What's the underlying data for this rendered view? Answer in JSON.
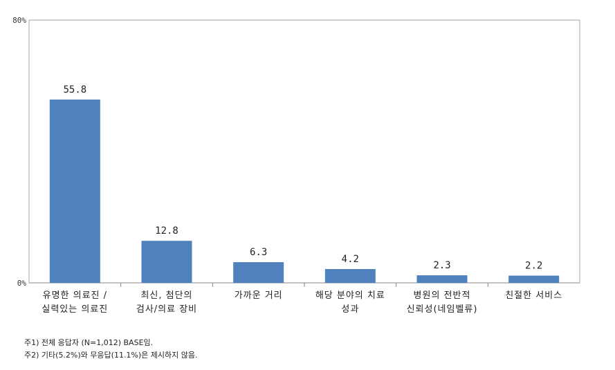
{
  "chart_data": {
    "type": "bar",
    "categories": [
      [
        "유명한 의료진 /",
        "실력있는 의료진"
      ],
      [
        "최신, 첨단의",
        "검사/의료 장비"
      ],
      [
        "가까운 거리"
      ],
      [
        "해당 분야의 치료",
        "성과"
      ],
      [
        "병원의 전반적",
        "신뢰성(네임벨류)"
      ],
      [
        "친절한 서비스"
      ]
    ],
    "values": [
      55.8,
      12.8,
      6.3,
      4.2,
      2.3,
      2.2
    ],
    "value_labels": [
      "55.8",
      "12.8",
      "6.3",
      "4.2",
      "2.3",
      "2.2"
    ],
    "ylim": [
      0,
      80
    ],
    "ytick_labels": [
      "0%",
      "80%"
    ],
    "bar_color": "#4f81bd",
    "grid": false,
    "legend": "none"
  },
  "notes": [
    "주1) 전체 응답자 (N=1,012) BASE임.",
    "주2) 기타(5.2%)와 무응답(11.1%)은 제시하지 않음."
  ]
}
